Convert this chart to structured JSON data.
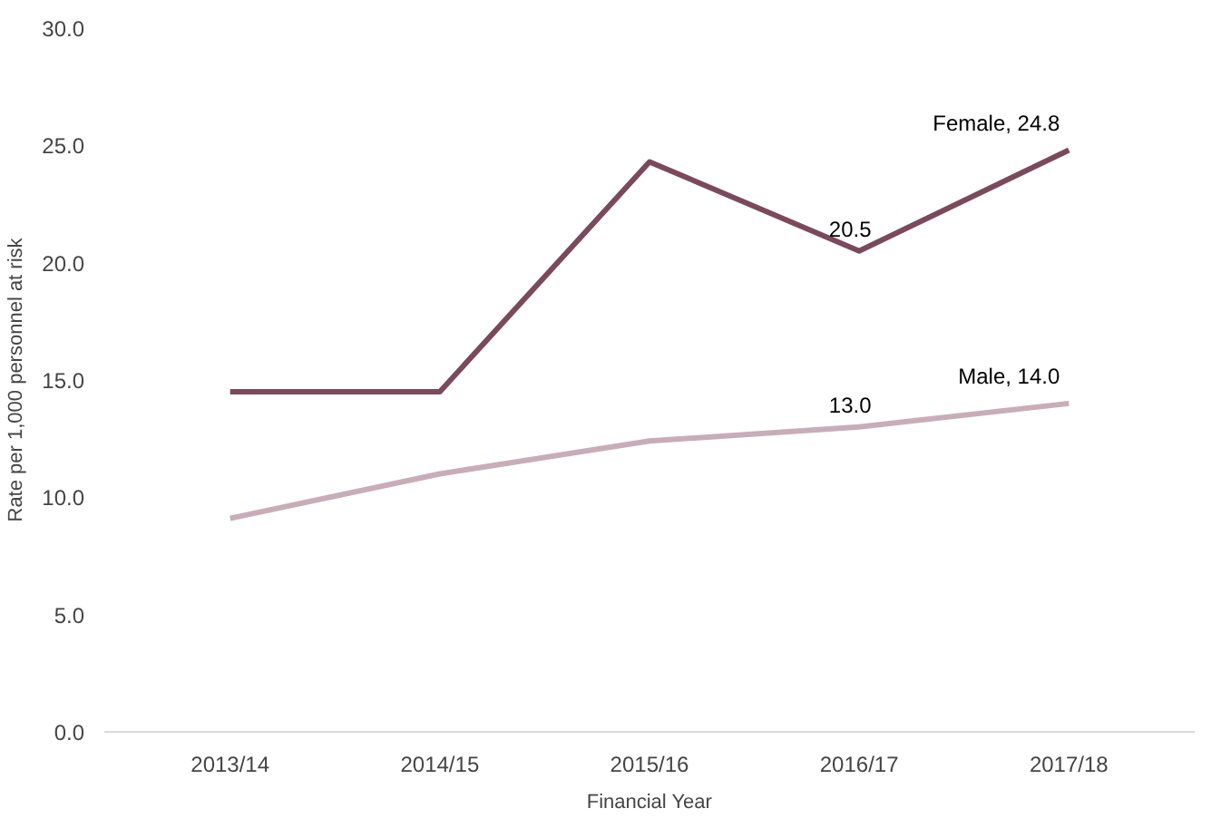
{
  "chart_data": {
    "type": "line",
    "xlabel": "Financial Year",
    "ylabel": "Rate per 1,000 personnel at risk",
    "categories": [
      "2013/14",
      "2014/15",
      "2015/16",
      "2016/17",
      "2017/18"
    ],
    "series": [
      {
        "color": "#7a4a5c",
        "values": [
          14.5,
          14.5,
          24.3,
          20.5,
          24.8
        ],
        "value_labels": [
          null,
          null,
          null,
          "20.5",
          "Female, 24.8"
        ]
      },
      {
        "color": "#c8adb8",
        "values": [
          9.1,
          11.0,
          12.4,
          13.0,
          14.0
        ],
        "value_labels": [
          null,
          null,
          null,
          "13.0",
          "Male, 14.0"
        ]
      }
    ],
    "ylim": [
      0,
      30
    ],
    "yticks": [
      {
        "value": 0,
        "label": "0.0"
      },
      {
        "value": 5,
        "label": "5.0"
      },
      {
        "value": 10,
        "label": "10.0"
      },
      {
        "value": 15,
        "label": "15.0"
      },
      {
        "value": 20,
        "label": "20.0"
      },
      {
        "value": 25,
        "label": "25.0"
      },
      {
        "value": 30,
        "label": "30.0"
      }
    ],
    "grid": false,
    "marker": "none",
    "line_style": "solid"
  }
}
